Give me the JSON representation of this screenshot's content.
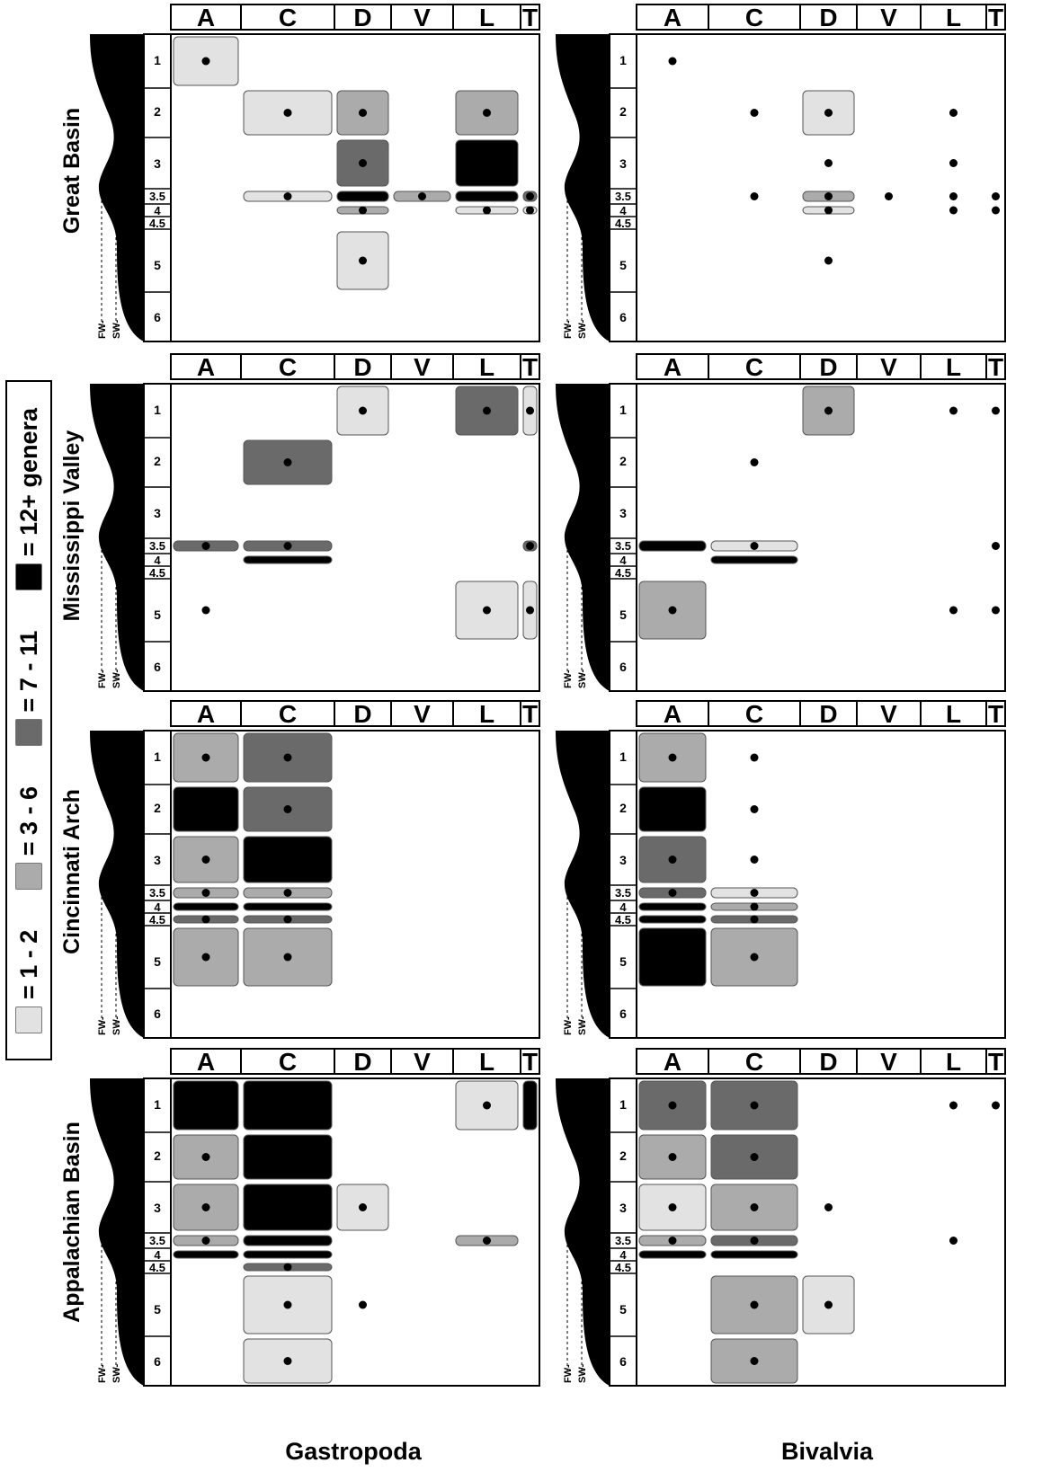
{
  "legend": {
    "items": [
      {
        "label": "= 1 - 2",
        "color": "#e2e2e2"
      },
      {
        "label": "= 3 - 6",
        "color": "#ababab"
      },
      {
        "label": "= 7 - 11",
        "color": "#6a6a6a"
      },
      {
        "label": "= 12+ genera",
        "color": "#000000"
      }
    ]
  },
  "column_titles": [
    "Gastropoda",
    "Bivalvia"
  ],
  "row_titles": [
    "Great Basin",
    "Mississippi Valley",
    "Cincinnati Arch",
    "Appalachian Basin"
  ],
  "profile_labels": [
    "FW-",
    "SW-"
  ],
  "chart_data": {
    "type": "heatmap",
    "x_categories": [
      "A",
      "C",
      "D",
      "V",
      "L",
      "T"
    ],
    "y_categories": [
      "1",
      "2",
      "3",
      "3.5",
      "4",
      "4.5",
      "5",
      "6"
    ],
    "level_legend": [
      "= 1 - 2",
      "= 3 - 6",
      "= 7 - 11",
      "= 12+ genera"
    ],
    "panels": [
      {
        "row": "Great Basin",
        "column": "Gastropoda",
        "cells": [
          {
            "x": "A",
            "y": "1",
            "level": 1,
            "dot": true
          },
          {
            "x": "C",
            "y": "2",
            "level": 1,
            "dot": true
          },
          {
            "x": "D",
            "y": "2",
            "level": 2,
            "dot": true
          },
          {
            "x": "L",
            "y": "2",
            "level": 2,
            "dot": true
          },
          {
            "x": "D",
            "y": "3",
            "level": 3,
            "dot": true
          },
          {
            "x": "L",
            "y": "3",
            "level": 4,
            "dot": false
          },
          {
            "x": "C",
            "y": "3.5",
            "level": 1,
            "dot": true
          },
          {
            "x": "D",
            "y": "3.5",
            "level": 4,
            "dot": false
          },
          {
            "x": "V",
            "y": "3.5",
            "level": 2,
            "dot": true
          },
          {
            "x": "L",
            "y": "3.5",
            "level": 4,
            "dot": false
          },
          {
            "x": "T",
            "y": "3.5",
            "level": 3,
            "dot": true
          },
          {
            "x": "D",
            "y": "4",
            "level": 2,
            "dot": true
          },
          {
            "x": "L",
            "y": "4",
            "level": 1,
            "dot": true
          },
          {
            "x": "T",
            "y": "4",
            "level": 1,
            "dot": true
          },
          {
            "x": "D",
            "y": "5",
            "level": 1,
            "dot": true
          }
        ]
      },
      {
        "row": "Great Basin",
        "column": "Bivalvia",
        "cells": [
          {
            "x": "A",
            "y": "1",
            "level": 0,
            "dot": true
          },
          {
            "x": "C",
            "y": "2",
            "level": 0,
            "dot": true
          },
          {
            "x": "D",
            "y": "2",
            "level": 1,
            "dot": true
          },
          {
            "x": "L",
            "y": "2",
            "level": 0,
            "dot": true
          },
          {
            "x": "D",
            "y": "3",
            "level": 0,
            "dot": true
          },
          {
            "x": "L",
            "y": "3",
            "level": 0,
            "dot": true
          },
          {
            "x": "C",
            "y": "3.5",
            "level": 0,
            "dot": true
          },
          {
            "x": "D",
            "y": "3.5",
            "level": 2,
            "dot": true
          },
          {
            "x": "V",
            "y": "3.5",
            "level": 0,
            "dot": true
          },
          {
            "x": "L",
            "y": "3.5",
            "level": 0,
            "dot": true
          },
          {
            "x": "T",
            "y": "3.5",
            "level": 0,
            "dot": true
          },
          {
            "x": "D",
            "y": "4",
            "level": 1,
            "dot": true
          },
          {
            "x": "L",
            "y": "4",
            "level": 0,
            "dot": true
          },
          {
            "x": "T",
            "y": "4",
            "level": 0,
            "dot": true
          },
          {
            "x": "D",
            "y": "5",
            "level": 0,
            "dot": true
          }
        ]
      },
      {
        "row": "Mississippi Valley",
        "column": "Gastropoda",
        "cells": [
          {
            "x": "D",
            "y": "1",
            "level": 1,
            "dot": true
          },
          {
            "x": "L",
            "y": "1",
            "level": 3,
            "dot": true
          },
          {
            "x": "T",
            "y": "1",
            "level": 1,
            "dot": true
          },
          {
            "x": "C",
            "y": "2",
            "level": 3,
            "dot": true
          },
          {
            "x": "A",
            "y": "3.5",
            "level": 3,
            "dot": true
          },
          {
            "x": "C",
            "y": "3.5",
            "level": 3,
            "dot": true
          },
          {
            "x": "T",
            "y": "3.5",
            "level": 3,
            "dot": true
          },
          {
            "x": "C",
            "y": "4",
            "level": 4,
            "dot": false
          },
          {
            "x": "A",
            "y": "5",
            "level": 0,
            "dot": true
          },
          {
            "x": "L",
            "y": "5",
            "level": 1,
            "dot": true
          },
          {
            "x": "T",
            "y": "5",
            "level": 1,
            "dot": true
          }
        ]
      },
      {
        "row": "Mississippi Valley",
        "column": "Bivalvia",
        "cells": [
          {
            "x": "D",
            "y": "1",
            "level": 2,
            "dot": true
          },
          {
            "x": "L",
            "y": "1",
            "level": 0,
            "dot": true
          },
          {
            "x": "T",
            "y": "1",
            "level": 0,
            "dot": true
          },
          {
            "x": "C",
            "y": "2",
            "level": 0,
            "dot": true
          },
          {
            "x": "A",
            "y": "3.5",
            "level": 4,
            "dot": false
          },
          {
            "x": "C",
            "y": "3.5",
            "level": 1,
            "dot": true
          },
          {
            "x": "T",
            "y": "3.5",
            "level": 0,
            "dot": true
          },
          {
            "x": "C",
            "y": "4",
            "level": 4,
            "dot": false
          },
          {
            "x": "A",
            "y": "5",
            "level": 2,
            "dot": true
          },
          {
            "x": "L",
            "y": "5",
            "level": 0,
            "dot": true
          },
          {
            "x": "T",
            "y": "5",
            "level": 0,
            "dot": true
          }
        ]
      },
      {
        "row": "Cincinnati Arch",
        "column": "Gastropoda",
        "cells": [
          {
            "x": "A",
            "y": "1",
            "level": 2,
            "dot": true
          },
          {
            "x": "C",
            "y": "1",
            "level": 3,
            "dot": true
          },
          {
            "x": "A",
            "y": "2",
            "level": 4,
            "dot": false
          },
          {
            "x": "C",
            "y": "2",
            "level": 3,
            "dot": true
          },
          {
            "x": "A",
            "y": "3",
            "level": 2,
            "dot": true
          },
          {
            "x": "C",
            "y": "3",
            "level": 4,
            "dot": false
          },
          {
            "x": "A",
            "y": "3.5",
            "level": 2,
            "dot": true
          },
          {
            "x": "C",
            "y": "3.5",
            "level": 2,
            "dot": true
          },
          {
            "x": "A",
            "y": "4",
            "level": 4,
            "dot": false
          },
          {
            "x": "C",
            "y": "4",
            "level": 4,
            "dot": false
          },
          {
            "x": "A",
            "y": "4.5",
            "level": 3,
            "dot": true
          },
          {
            "x": "C",
            "y": "4.5",
            "level": 3,
            "dot": true
          },
          {
            "x": "A",
            "y": "5",
            "level": 2,
            "dot": true
          },
          {
            "x": "C",
            "y": "5",
            "level": 2,
            "dot": true
          }
        ]
      },
      {
        "row": "Cincinnati Arch",
        "column": "Bivalvia",
        "cells": [
          {
            "x": "A",
            "y": "1",
            "level": 2,
            "dot": true
          },
          {
            "x": "C",
            "y": "1",
            "level": 0,
            "dot": true
          },
          {
            "x": "A",
            "y": "2",
            "level": 4,
            "dot": false
          },
          {
            "x": "C",
            "y": "2",
            "level": 0,
            "dot": true
          },
          {
            "x": "A",
            "y": "3",
            "level": 3,
            "dot": true
          },
          {
            "x": "C",
            "y": "3",
            "level": 0,
            "dot": true
          },
          {
            "x": "A",
            "y": "3.5",
            "level": 3,
            "dot": true
          },
          {
            "x": "C",
            "y": "3.5",
            "level": 1,
            "dot": true
          },
          {
            "x": "A",
            "y": "4",
            "level": 4,
            "dot": false
          },
          {
            "x": "C",
            "y": "4",
            "level": 2,
            "dot": true
          },
          {
            "x": "A",
            "y": "4.5",
            "level": 4,
            "dot": false
          },
          {
            "x": "C",
            "y": "4.5",
            "level": 3,
            "dot": true
          },
          {
            "x": "A",
            "y": "5",
            "level": 4,
            "dot": false
          },
          {
            "x": "C",
            "y": "5",
            "level": 2,
            "dot": true
          }
        ]
      },
      {
        "row": "Appalachian Basin",
        "column": "Gastropoda",
        "cells": [
          {
            "x": "A",
            "y": "1",
            "level": 4,
            "dot": false
          },
          {
            "x": "C",
            "y": "1",
            "level": 4,
            "dot": false
          },
          {
            "x": "L",
            "y": "1",
            "level": 1,
            "dot": true
          },
          {
            "x": "T",
            "y": "1",
            "level": 4,
            "dot": false
          },
          {
            "x": "A",
            "y": "2",
            "level": 2,
            "dot": true
          },
          {
            "x": "C",
            "y": "2",
            "level": 4,
            "dot": false
          },
          {
            "x": "A",
            "y": "3",
            "level": 2,
            "dot": true
          },
          {
            "x": "C",
            "y": "3",
            "level": 4,
            "dot": false
          },
          {
            "x": "D",
            "y": "3",
            "level": 1,
            "dot": true
          },
          {
            "x": "A",
            "y": "3.5",
            "level": 2,
            "dot": true
          },
          {
            "x": "C",
            "y": "3.5",
            "level": 4,
            "dot": false
          },
          {
            "x": "L",
            "y": "3.5",
            "level": 2,
            "dot": true
          },
          {
            "x": "A",
            "y": "4",
            "level": 4,
            "dot": false
          },
          {
            "x": "C",
            "y": "4",
            "level": 4,
            "dot": false
          },
          {
            "x": "C",
            "y": "4.5",
            "level": 3,
            "dot": true
          },
          {
            "x": "C",
            "y": "5",
            "level": 1,
            "dot": true
          },
          {
            "x": "D",
            "y": "5",
            "level": 0,
            "dot": true
          },
          {
            "x": "C",
            "y": "6",
            "level": 1,
            "dot": true
          }
        ]
      },
      {
        "row": "Appalachian Basin",
        "column": "Bivalvia",
        "cells": [
          {
            "x": "A",
            "y": "1",
            "level": 3,
            "dot": true
          },
          {
            "x": "C",
            "y": "1",
            "level": 3,
            "dot": true
          },
          {
            "x": "L",
            "y": "1",
            "level": 0,
            "dot": true
          },
          {
            "x": "T",
            "y": "1",
            "level": 0,
            "dot": true
          },
          {
            "x": "A",
            "y": "2",
            "level": 2,
            "dot": true
          },
          {
            "x": "C",
            "y": "2",
            "level": 3,
            "dot": true
          },
          {
            "x": "A",
            "y": "3",
            "level": 1,
            "dot": true
          },
          {
            "x": "C",
            "y": "3",
            "level": 2,
            "dot": true
          },
          {
            "x": "D",
            "y": "3",
            "level": 0,
            "dot": true
          },
          {
            "x": "A",
            "y": "3.5",
            "level": 2,
            "dot": true
          },
          {
            "x": "C",
            "y": "3.5",
            "level": 3,
            "dot": true
          },
          {
            "x": "L",
            "y": "3.5",
            "level": 0,
            "dot": true
          },
          {
            "x": "A",
            "y": "4",
            "level": 4,
            "dot": false
          },
          {
            "x": "C",
            "y": "4",
            "level": 4,
            "dot": false
          },
          {
            "x": "C",
            "y": "5",
            "level": 2,
            "dot": true
          },
          {
            "x": "D",
            "y": "5",
            "level": 1,
            "dot": true
          },
          {
            "x": "C",
            "y": "6",
            "level": 2,
            "dot": true
          }
        ]
      }
    ]
  }
}
